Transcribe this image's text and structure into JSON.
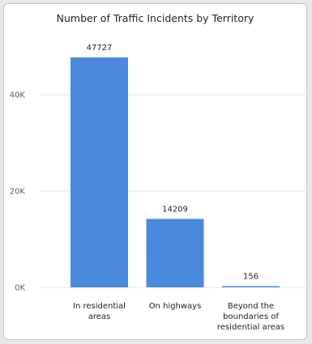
{
  "chart_data": {
    "type": "bar",
    "title": "Number of Traffic Incidents by Territory",
    "xlabel": "",
    "ylabel": "",
    "categories": [
      [
        "In residential",
        "areas"
      ],
      [
        "On highways"
      ],
      [
        "Beyond the",
        "boundaries of",
        "residential areas"
      ]
    ],
    "values": [
      47727,
      14209,
      156
    ],
    "data_labels": [
      "47727",
      "14209",
      "156"
    ],
    "ylim": [
      0,
      50000
    ],
    "yticks": [
      0,
      20000,
      40000
    ],
    "ytick_labels": [
      "0K",
      "20K",
      "40K"
    ],
    "bar_color": "#4a89dc",
    "grid": true
  }
}
